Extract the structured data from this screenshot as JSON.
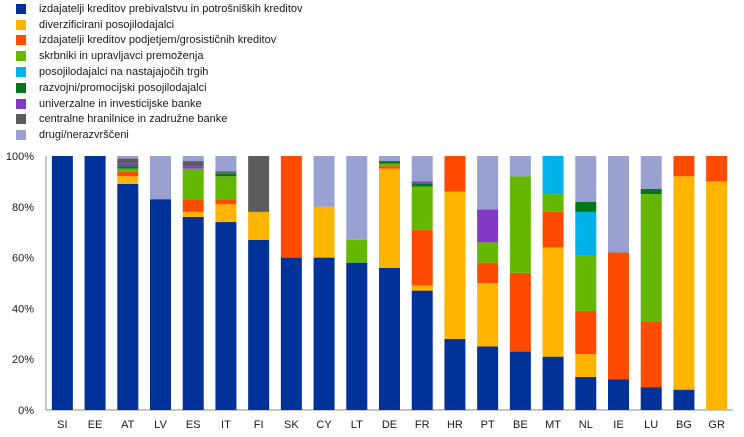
{
  "chart_data": {
    "type": "bar",
    "stacked": true,
    "categories": [
      "SI",
      "EE",
      "AT",
      "LV",
      "ES",
      "IT",
      "FI",
      "SK",
      "CY",
      "LT",
      "DE",
      "FR",
      "HR",
      "PT",
      "BE",
      "MT",
      "NL",
      "IE",
      "LU",
      "BG",
      "GR"
    ],
    "ylim": [
      0,
      100
    ],
    "yticks": [
      "0%",
      "20%",
      "40%",
      "60%",
      "80%",
      "100%"
    ],
    "legend_position": "top-left",
    "grid": false,
    "series": [
      {
        "name": "izdajatelji kreditov prebivalstvu in potrošniških kreditov",
        "color": "#003299",
        "values": [
          100,
          100,
          89,
          83,
          76,
          74,
          67,
          60,
          60,
          58,
          56,
          47,
          28,
          25,
          23,
          21,
          13,
          12,
          9,
          8,
          0
        ]
      },
      {
        "name": "diverzificirani posojilodajalci",
        "color": "#ffb400",
        "values": [
          0,
          0,
          3,
          0,
          2,
          7,
          11,
          0,
          20,
          0,
          39,
          2,
          58,
          25,
          0,
          43,
          9,
          0,
          0,
          84,
          90
        ]
      },
      {
        "name": "izdajatelji kreditov podjetjem/grosističnih kreditov",
        "color": "#ff4b00",
        "values": [
          0,
          0,
          2,
          0,
          5,
          2,
          0,
          40,
          0,
          0,
          1,
          22,
          14,
          8,
          31,
          14,
          17,
          50,
          26,
          8,
          10
        ]
      },
      {
        "name": "skrbniki in upravljavci premoženja",
        "color": "#65b800",
        "values": [
          0,
          0,
          1,
          0,
          12,
          9,
          0,
          0,
          0,
          9,
          1,
          17,
          0,
          8,
          38,
          7,
          22,
          0,
          50,
          0,
          0
        ]
      },
      {
        "name": "posojilodajalci na nastajajočih trgih",
        "color": "#00b1ea",
        "values": [
          0,
          0,
          0,
          0,
          0,
          0,
          0,
          0,
          0,
          0,
          0,
          0,
          0,
          0,
          0,
          15,
          17,
          0,
          0,
          0,
          0
        ]
      },
      {
        "name": "razvojni/promocijski posojilodajalci",
        "color": "#007816",
        "values": [
          0,
          0,
          1,
          0,
          0,
          1,
          0,
          0,
          0,
          0,
          1,
          1,
          0,
          0,
          0,
          0,
          4,
          0,
          2,
          0,
          0
        ]
      },
      {
        "name": "univerzalne in investicijske banke",
        "color": "#8139c6",
        "values": [
          0,
          0,
          1,
          0,
          1,
          0,
          0,
          0,
          0,
          0,
          0,
          1,
          0,
          13,
          0,
          0,
          0,
          0,
          0,
          0,
          0
        ]
      },
      {
        "name": "centralne hranilnice in zadružne banke",
        "color": "#5c5c5c",
        "values": [
          0,
          0,
          2,
          0,
          2,
          1,
          22,
          0,
          0,
          0,
          0,
          0,
          0,
          0,
          0,
          0,
          0,
          0,
          0,
          0,
          0
        ]
      },
      {
        "name": "drugi/nerazvrščeni",
        "color": "#98a1d0",
        "values": [
          0,
          0,
          1,
          17,
          2,
          6,
          0,
          0,
          20,
          33,
          2,
          10,
          0,
          21,
          8,
          0,
          18,
          38,
          13,
          0,
          0
        ]
      }
    ]
  }
}
